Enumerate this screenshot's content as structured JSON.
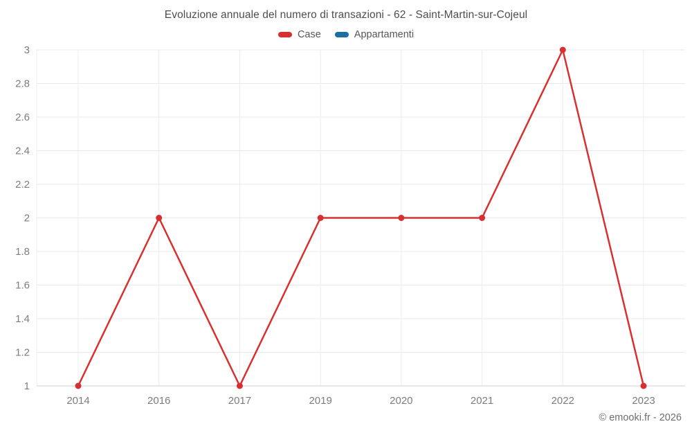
{
  "chart_data": {
    "type": "line",
    "title": "Evoluzione annuale del numero di transazioni - 62 - Saint-Martin-sur-Cojeul",
    "categories": [
      "2014",
      "2016",
      "2017",
      "2019",
      "2020",
      "2021",
      "2022",
      "2023"
    ],
    "series": [
      {
        "name": "Case",
        "color": "#d7302f",
        "values": [
          1,
          2,
          1,
          2,
          2,
          2,
          3,
          1
        ]
      },
      {
        "name": "Appartamenti",
        "color": "#1a6ea6",
        "values": [
          null,
          null,
          null,
          null,
          null,
          null,
          null,
          null
        ]
      }
    ],
    "xlabel": "",
    "ylabel": "",
    "ylim": [
      1,
      3
    ],
    "yticks": [
      1,
      1.2,
      1.4,
      1.6,
      1.8,
      2,
      2.2,
      2.4,
      2.6,
      2.8,
      3
    ],
    "grid": true,
    "legend_position": "top"
  },
  "legend": {
    "items": [
      {
        "label": "Case",
        "color": "#d7302f"
      },
      {
        "label": "Appartamenti",
        "color": "#1a6ea6"
      }
    ]
  },
  "footer": {
    "credit": "© emooki.fr - 2026"
  }
}
